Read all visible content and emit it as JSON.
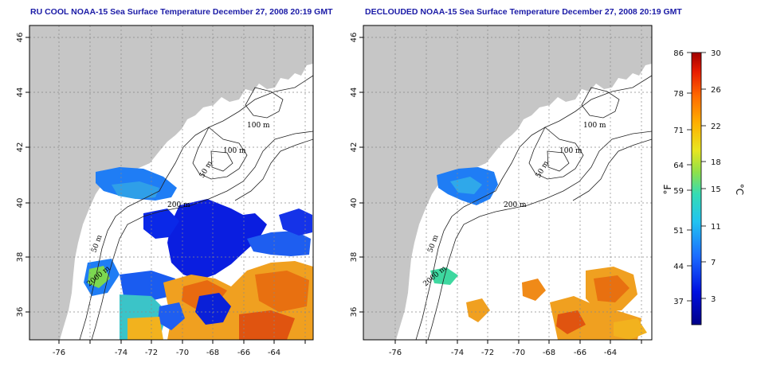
{
  "titles": {
    "left": "RU COOL NOAA-15 Sea Surface Temperature December 27, 2008 20:19 GMT",
    "right": "DECLOUDED NOAA-15 Sea Surface Temperature December 27, 2008 20:19 GMT"
  },
  "axes": {
    "x_ticks": [
      "-76",
      "-74",
      "-72",
      "-70",
      "-68",
      "-66",
      "-64"
    ],
    "y_ticks": [
      "46",
      "44",
      "42",
      "40",
      "38",
      "36"
    ]
  },
  "contour_labels": {
    "left": [
      "100 m",
      "100 m",
      "50 m",
      "200 m",
      "50 m",
      "2000 m"
    ],
    "right": [
      "100 m",
      "100 m",
      "50 m",
      "200 m",
      "50 m",
      "2000 m"
    ]
  },
  "colorbar": {
    "fahrenheit_ticks": [
      "86",
      "78",
      "71",
      "64",
      "59",
      "51",
      "44",
      "37"
    ],
    "celsius_ticks": [
      "30",
      "26",
      "22",
      "18",
      "15",
      "11",
      "7",
      "3"
    ],
    "unit_f": "°F",
    "unit_c": "°C",
    "range_c": [
      0,
      30
    ]
  },
  "colors": {
    "land": "#c6c6c6",
    "title": "#1a1aa6"
  }
}
